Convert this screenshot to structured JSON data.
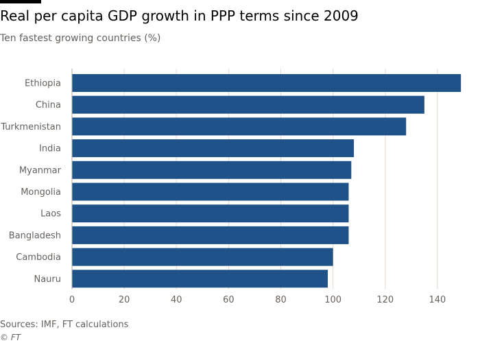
{
  "title": "Real per capita GDP growth in PPP terms since 2009",
  "subtitle": "Ten fastest growing countries (%)",
  "source": "Sources: IMF, FT calculations",
  "credit": "© FT",
  "colors": {
    "bar": "#1f5289",
    "grid": "#e6d9ce",
    "text": "#66605c",
    "accent_bar": "#000000"
  },
  "chart_data": {
    "type": "bar",
    "orientation": "horizontal",
    "title": "Real per capita GDP growth in PPP terms since 2009",
    "subtitle": "Ten fastest growing countries (%)",
    "categories": [
      "Ethiopia",
      "China",
      "Turkmenistan",
      "India",
      "Myanmar",
      "Mongolia",
      "Laos",
      "Bangladesh",
      "Cambodia",
      "Nauru"
    ],
    "values": [
      149,
      135,
      128,
      108,
      107,
      106,
      106,
      106,
      100,
      98
    ],
    "xlim": [
      0,
      150
    ],
    "xticks": [
      0,
      20,
      40,
      60,
      80,
      100,
      120,
      140
    ],
    "grid": true,
    "legend": false
  }
}
